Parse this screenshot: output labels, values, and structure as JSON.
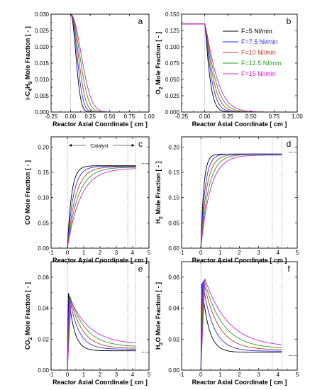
{
  "chart_data": [
    {
      "panel": "a",
      "type": "line",
      "xlabel": "Reactor Axial Coordinate [ cm ]",
      "ylabel": "i-C4H8 Mole Fraction [ - ]",
      "ylabel_parts": [
        {
          "t": "i-C",
          "sub": false
        },
        {
          "t": "4",
          "sub": true
        },
        {
          "t": "H",
          "sub": false
        },
        {
          "t": "8",
          "sub": true
        },
        {
          "t": " Mole Fraction [ - ]",
          "sub": false
        }
      ],
      "xlim": [
        -0.25,
        1.0
      ],
      "ylim": [
        0,
        0.03
      ],
      "xticks": [
        -0.25,
        0.0,
        0.25,
        0.5,
        0.75,
        1.0
      ],
      "xtick_labels": [
        "-0.25",
        "0.00",
        "0.25",
        "0.50",
        "0.75",
        "1.00"
      ],
      "yticks": [
        0,
        0.005,
        0.01,
        0.015,
        0.02,
        0.025,
        0.03
      ],
      "ytick_labels": [
        "0.000",
        "0.005",
        "0.010",
        "0.015",
        "0.020",
        "0.025",
        "0.030"
      ],
      "vlines": [
        0
      ],
      "model": "feed_decay",
      "y_in": 0.03,
      "y_end": 0.0,
      "k": [
        11.0,
        9.0,
        7.5,
        6.3,
        5.4
      ],
      "n": 2.0
    },
    {
      "panel": "b",
      "type": "line",
      "xlabel": "Reactor Axial Coordinate [ cm ]",
      "ylabel": "O2 Mole Fraction [ - ]",
      "ylabel_parts": [
        {
          "t": "O",
          "sub": false
        },
        {
          "t": "2",
          "sub": true
        },
        {
          "t": " Mole Fraction [ - ]",
          "sub": false
        }
      ],
      "xlim": [
        -0.25,
        1.0
      ],
      "ylim": [
        0,
        0.15
      ],
      "xticks": [
        -0.25,
        0.0,
        0.25,
        0.5,
        0.75,
        1.0
      ],
      "xtick_labels": [
        "-0.25",
        "0.00",
        "0.25",
        "0.50",
        "0.75",
        "1.00"
      ],
      "yticks": [
        0,
        0.025,
        0.05,
        0.075,
        0.1,
        0.125,
        0.15
      ],
      "ytick_labels": [
        "0.000",
        "0.025",
        "0.050",
        "0.075",
        "0.100",
        "0.125",
        "0.150"
      ],
      "vlines": [
        0
      ],
      "legend_location": "top-right",
      "model": "feed_decay",
      "y_in": 0.135,
      "y_end": 0.0,
      "k": [
        17.0,
        13.0,
        10.5,
        8.7,
        7.3
      ],
      "n": 1.25
    },
    {
      "panel": "c",
      "type": "line",
      "xlabel": "Reactor Axial Coordinate [ cm ]",
      "ylabel": "CO Mole Fraction [ - ]",
      "ylabel_parts": [
        {
          "t": "CO  Mole Fraction [ - ]",
          "sub": false
        }
      ],
      "xlim": [
        -1,
        5
      ],
      "ylim": [
        0,
        0.22
      ],
      "xticks": [
        -1,
        0,
        1,
        2,
        3,
        4,
        5
      ],
      "xtick_labels": [
        "-1",
        "0",
        "1",
        "2",
        "3",
        "4",
        "5"
      ],
      "yticks": [
        0,
        0.05,
        0.1,
        0.15,
        0.2
      ],
      "ytick_labels": [
        "0.00",
        "0.05",
        "0.10",
        "0.15",
        "0.20"
      ],
      "vlines": [
        0,
        3.7,
        4.2
      ],
      "annotation": "Catalyst",
      "annotation_span": [
        0,
        4.2
      ],
      "model": "rise",
      "y_end": [
        0.163,
        0.162,
        0.161,
        0.16,
        0.158
      ],
      "tau": [
        0.25,
        0.36,
        0.5,
        0.65,
        0.8
      ],
      "ref_level": 0.167
    },
    {
      "panel": "d",
      "type": "line",
      "xlabel": "Reactor Axial Coordinate [ cm ]",
      "ylabel": "H2 Mole Fraction [ - ]",
      "ylabel_parts": [
        {
          "t": "H",
          "sub": false
        },
        {
          "t": "2",
          "sub": true
        },
        {
          "t": " Mole Fraction [ - ]",
          "sub": false
        }
      ],
      "xlim": [
        -1,
        5
      ],
      "ylim": [
        0,
        0.22
      ],
      "xticks": [
        -1,
        0,
        1,
        2,
        3,
        4,
        5
      ],
      "xtick_labels": [
        "-1",
        "0",
        "1",
        "2",
        "3",
        "4",
        "5"
      ],
      "yticks": [
        0,
        0.05,
        0.1,
        0.15,
        0.2
      ],
      "ytick_labels": [
        "0.00",
        "0.05",
        "0.10",
        "0.15",
        "0.20"
      ],
      "vlines": [
        0,
        3.7,
        4.2
      ],
      "model": "rise",
      "y_end": [
        0.186,
        0.186,
        0.185,
        0.185,
        0.184
      ],
      "tau": [
        0.15,
        0.22,
        0.3,
        0.4,
        0.5
      ],
      "ref_level": 0.19
    },
    {
      "panel": "e",
      "type": "line",
      "xlabel": "Reactor Axial Coordinate [ cm ]",
      "ylabel": "CO2 Mole Fraction [ - ]",
      "ylabel_parts": [
        {
          "t": "CO",
          "sub": false
        },
        {
          "t": "2",
          "sub": true
        },
        {
          "t": " Mole Fraction [ - ]",
          "sub": false
        }
      ],
      "xlim": [
        -1,
        5
      ],
      "ylim": [
        0,
        0.07
      ],
      "xticks": [
        -1,
        0,
        1,
        2,
        3,
        4,
        5
      ],
      "xtick_labels": [
        "-1",
        "0",
        "1",
        "2",
        "3",
        "4",
        "5"
      ],
      "yticks": [
        0,
        0.02,
        0.04,
        0.06
      ],
      "ytick_labels": [
        "0.00",
        "0.02",
        "0.04",
        "0.06"
      ],
      "vlines": [
        0,
        3.7,
        4.2
      ],
      "model": "peak",
      "x_peak": [
        0.06,
        0.1,
        0.14,
        0.18,
        0.22
      ],
      "y_peak": [
        0.05,
        0.049,
        0.048,
        0.047,
        0.045
      ],
      "y_end": [
        0.0125,
        0.0135,
        0.014,
        0.015,
        0.0165
      ],
      "tau": [
        0.35,
        0.55,
        0.75,
        0.95,
        1.2
      ],
      "ref_level": 0.0115
    },
    {
      "panel": "f",
      "type": "line",
      "xlabel": "Reactor Axial Coordinate [ cm ]",
      "ylabel": "H2O Mole Fraction [ - ]",
      "ylabel_parts": [
        {
          "t": "H",
          "sub": false
        },
        {
          "t": "2",
          "sub": true
        },
        {
          "t": "O Mole Fraction [ - ]",
          "sub": false
        }
      ],
      "xlim": [
        -1,
        5
      ],
      "ylim": [
        0,
        0.07
      ],
      "xticks": [
        -1,
        0,
        1,
        2,
        3,
        4,
        5
      ],
      "xtick_labels": [
        "-1",
        "0",
        "1",
        "2",
        "3",
        "4",
        "5"
      ],
      "yticks": [
        0,
        0.02,
        0.04,
        0.06
      ],
      "ytick_labels": [
        "0.00",
        "0.02",
        "0.04",
        "0.06"
      ],
      "vlines": [
        0,
        3.7,
        4.2
      ],
      "model": "peak",
      "x_peak": [
        0.05,
        0.09,
        0.13,
        0.17,
        0.21
      ],
      "y_peak": [
        0.056,
        0.057,
        0.058,
        0.0585,
        0.059
      ],
      "y_end": [
        0.0115,
        0.0122,
        0.013,
        0.0138,
        0.0148
      ],
      "tau": [
        0.35,
        0.55,
        0.75,
        0.95,
        1.2
      ],
      "ref_level": 0.0095
    }
  ],
  "legend": {
    "location": "top-right",
    "entries": [
      "F=5 Nl/min",
      "F=7.5 Nl/min",
      "F=10 Nl/min",
      "F=12.5 Nl/min",
      "F=15 Nl/min"
    ]
  },
  "series_colors": [
    "#000000",
    "#2b2bff",
    "#b84020",
    "#20a020",
    "#d020d0"
  ],
  "feed_color": "#d020d0",
  "reference_color": "#000000",
  "vline_color": "#9a9a9a"
}
